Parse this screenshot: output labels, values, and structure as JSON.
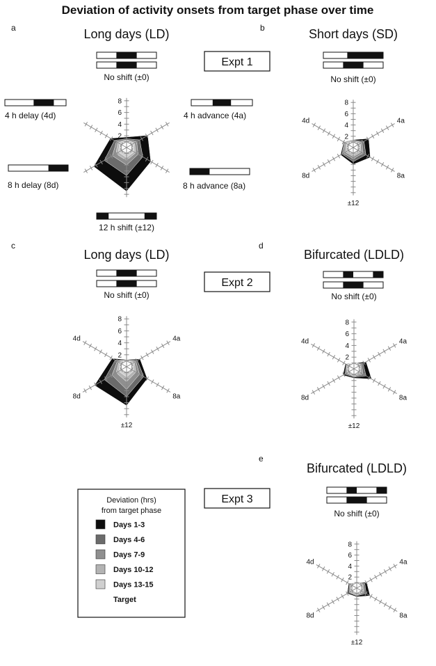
{
  "figure": {
    "title": "Deviation of activity onsets from target phase over time",
    "expt_labels": [
      "Expt 1",
      "Expt 2",
      "Expt 3"
    ],
    "legend": {
      "heading_lines": [
        "Deviation (hrs)",
        "from target phase"
      ],
      "items": [
        {
          "label": "Days 1-3",
          "color": "#0d0d0d"
        },
        {
          "label": "Days 4-6",
          "color": "#6b6b6b"
        },
        {
          "label": "Days 7-9",
          "color": "#8f8f8f"
        },
        {
          "label": "Days 10-12",
          "color": "#b3b3b3"
        },
        {
          "label": "Days 13-15",
          "color": "#d0d0d0"
        },
        {
          "label": "Target",
          "color": "#ffffff"
        }
      ]
    }
  },
  "chart_data": [
    {
      "panel": "a",
      "type": "radar",
      "title": "Long days (LD)",
      "axis_max": 8,
      "tick_labels": [
        "2",
        "4",
        "6",
        "8"
      ],
      "axis_labels": {
        "top": "No shift (±0)",
        "ur": "4 h advance (4a)",
        "lr": "8 h advance (8a)",
        "bottom": "12 h shift (±12)",
        "ll": "8 h delay (8d)",
        "ul": "4 h delay (4d)"
      },
      "axes": [
        "No shift (±0)",
        "4a",
        "8a",
        "±12",
        "8d",
        "4d"
      ],
      "series": [
        {
          "name": "Days 1-3",
          "values": [
            1.8,
            4.2,
            4.8,
            7.5,
            6.5,
            3.2
          ]
        },
        {
          "name": "Days 4-6",
          "values": [
            1.5,
            2.6,
            3.2,
            4.8,
            4.4,
            2.4
          ]
        },
        {
          "name": "Days 7-9",
          "values": [
            1.3,
            2.0,
            2.3,
            3.0,
            2.8,
            2.0
          ]
        },
        {
          "name": "Days 10-12",
          "values": [
            1.2,
            1.6,
            1.8,
            2.2,
            2.1,
            1.7
          ]
        },
        {
          "name": "Days 13-15",
          "values": [
            1.1,
            1.4,
            1.5,
            1.7,
            1.6,
            1.4
          ]
        },
        {
          "name": "Target",
          "values": [
            1,
            1,
            1,
            1,
            1,
            1
          ]
        }
      ]
    },
    {
      "panel": "b",
      "type": "radar",
      "title": "Short days (SD)",
      "axis_max": 8,
      "tick_labels": [
        "2",
        "4",
        "6",
        "8"
      ],
      "axis_labels": {
        "top": "No shift (±0)",
        "ur": "4a",
        "lr": "8a",
        "bottom": "±12",
        "ll": "8d",
        "ul": "4d"
      },
      "axes": [
        "No shift (±0)",
        "4a",
        "8a",
        "±12",
        "8d",
        "4d"
      ],
      "series": [
        {
          "name": "Days 1-3",
          "values": [
            1.4,
            3.2,
            3.5,
            3.0,
            2.6,
            2.0
          ]
        },
        {
          "name": "Days 4-6",
          "values": [
            1.3,
            2.2,
            2.6,
            2.5,
            2.3,
            1.9
          ]
        },
        {
          "name": "Days 7-9",
          "values": [
            1.2,
            1.8,
            2.0,
            2.0,
            2.0,
            1.7
          ]
        },
        {
          "name": "Days 10-12",
          "values": [
            1.1,
            1.5,
            1.6,
            1.6,
            1.6,
            1.5
          ]
        },
        {
          "name": "Days 13-15",
          "values": [
            1.05,
            1.3,
            1.3,
            1.3,
            1.3,
            1.3
          ]
        },
        {
          "name": "Target",
          "values": [
            1,
            1,
            1,
            1,
            1,
            1
          ]
        }
      ]
    },
    {
      "panel": "c",
      "type": "radar",
      "title": "Long days (LD)",
      "axis_max": 8,
      "tick_labels": [
        "2",
        "4",
        "6",
        "8"
      ],
      "axis_labels": {
        "top": "No shift (±0)",
        "ur": "4a",
        "lr": "8a",
        "bottom": "±12",
        "ll": "8d",
        "ul": "4d"
      },
      "axes": [
        "No shift (±0)",
        "4a",
        "8a",
        "±12",
        "8d",
        "4d"
      ],
      "series": [
        {
          "name": "Days 1-3",
          "values": [
            1.2,
            2.6,
            4.0,
            6.5,
            6.2,
            2.8
          ]
        },
        {
          "name": "Days 4-6",
          "values": [
            1.1,
            2.1,
            3.3,
            5.0,
            4.3,
            2.2
          ]
        },
        {
          "name": "Days 7-9",
          "values": [
            1.1,
            1.8,
            2.5,
            3.8,
            2.8,
            1.8
          ]
        },
        {
          "name": "Days 10-12",
          "values": [
            1.05,
            1.5,
            1.8,
            2.5,
            2.0,
            1.5
          ]
        },
        {
          "name": "Days 13-15",
          "values": [
            1.0,
            1.3,
            1.4,
            1.7,
            1.5,
            1.3
          ]
        },
        {
          "name": "Target",
          "values": [
            1,
            1,
            1,
            1,
            1,
            1
          ]
        }
      ]
    },
    {
      "panel": "d",
      "type": "radar",
      "title": "Bifurcated (LDLD)",
      "axis_max": 8,
      "tick_labels": [
        "2",
        "4",
        "6",
        "8"
      ],
      "axis_labels": {
        "top": "No shift (±0)",
        "ur": "4a",
        "lr": "8a",
        "bottom": "±12",
        "ll": "8d",
        "ul": "4d"
      },
      "axes": [
        "No shift (±0)",
        "4a",
        "8a",
        "±12",
        "8d",
        "4d"
      ],
      "series": [
        {
          "name": "Days 1-3",
          "values": [
            1.0,
            2.4,
            3.5,
            1.6,
            2.2,
            1.7
          ]
        },
        {
          "name": "Days 4-6",
          "values": [
            1.0,
            1.8,
            2.4,
            1.4,
            1.8,
            1.5
          ]
        },
        {
          "name": "Days 7-9",
          "values": [
            1.0,
            1.5,
            1.8,
            1.3,
            1.5,
            1.4
          ]
        },
        {
          "name": "Days 10-12",
          "values": [
            1.0,
            1.3,
            1.4,
            1.2,
            1.3,
            1.25
          ]
        },
        {
          "name": "Days 13-15",
          "values": [
            1.0,
            1.15,
            1.2,
            1.1,
            1.15,
            1.1
          ]
        },
        {
          "name": "Target",
          "values": [
            1,
            1,
            1,
            1,
            1,
            1
          ]
        }
      ]
    },
    {
      "panel": "e",
      "type": "radar",
      "title": "Bifurcated (LDLD)",
      "axis_max": 8,
      "tick_labels": [
        "2",
        "4",
        "6",
        "8"
      ],
      "axis_labels": {
        "top": "No shift (±0)",
        "ur": "4a",
        "lr": "8a",
        "bottom": "±12",
        "ll": "8d",
        "ul": "4d"
      },
      "axes": [
        "No shift (±0)",
        "4a",
        "8a",
        "±12",
        "8d",
        "4d"
      ],
      "series": [
        {
          "name": "Days 1-3",
          "values": [
            1.0,
            2.1,
            2.8,
            1.6,
            2.0,
            1.7
          ]
        },
        {
          "name": "Days 4-6",
          "values": [
            1.0,
            1.7,
            2.0,
            1.4,
            1.7,
            1.5
          ]
        },
        {
          "name": "Days 7-9",
          "values": [
            1.0,
            1.4,
            1.6,
            1.3,
            1.5,
            1.35
          ]
        },
        {
          "name": "Days 10-12",
          "values": [
            1.0,
            1.25,
            1.35,
            1.2,
            1.3,
            1.2
          ]
        },
        {
          "name": "Days 13-15",
          "values": [
            1.0,
            1.1,
            1.15,
            1.1,
            1.15,
            1.1
          ]
        },
        {
          "name": "Target",
          "values": [
            1,
            1,
            1,
            1,
            1,
            1
          ]
        }
      ]
    }
  ]
}
